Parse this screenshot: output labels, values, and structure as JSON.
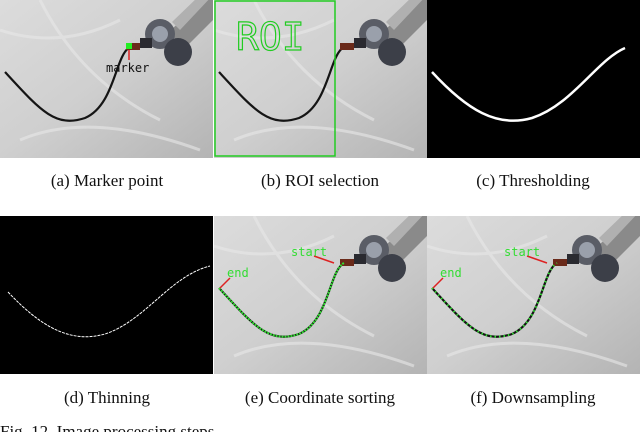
{
  "panels": [
    {
      "caption": "(a) Marker point",
      "labels": [
        "marker"
      ]
    },
    {
      "caption": "(b) ROI selection",
      "labels": [
        "ROI"
      ]
    },
    {
      "caption": "(c) Thresholding"
    },
    {
      "caption": "(d) Thinning"
    },
    {
      "caption": "(e) Coordinate sorting",
      "labels": [
        "start",
        "end"
      ]
    },
    {
      "caption": "(f) Downsampling",
      "labels": [
        "start",
        "end"
      ]
    }
  ],
  "figure_caption": "Fig. 12. Image processing steps."
}
